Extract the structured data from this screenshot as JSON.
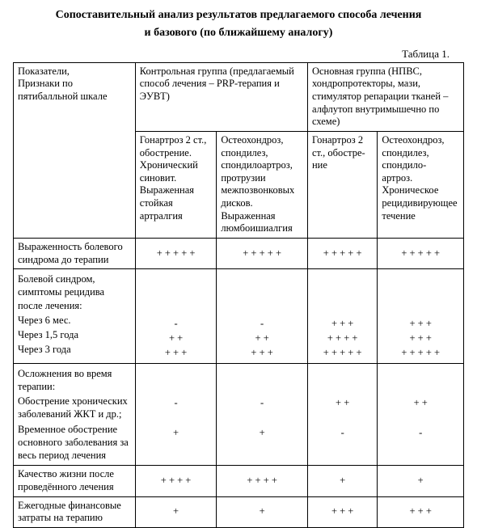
{
  "title_line1": "Сопоставительный анализ результатов предлагаемого способа лечения",
  "title_line2": "и базового (по ближайшему аналогу)",
  "table_label": "Таблица 1.",
  "head": {
    "r0c0": "Показатели,\nПризнаки по\nпятибалльной шкале",
    "r0c1": "Контрольная группа (предлагаемый способ лечения – PRP-терапия и ЭУВТ)",
    "r0c2": "Основная группа (НПВС, хондропротекторы, мази, стимулятор репарации тканей – алфлутоп внутримышечно по схеме)",
    "r1c1": "Гонартроз 2 ст., обострение. Хронический синовит. Выраженная стойкая артралгия",
    "r1c2": "Остеохондроз, спондилез, спондилоартроз, протрузии межпозвонковых дисков. Выраженная люмбоишиалгия",
    "r1c3": "Гонартроз 2 ст., обостре-\nние",
    "r1c4": "Остеохондроз, спондилез, спондило-\nартроз. Хроническое рецидивирующее течение"
  },
  "rows": {
    "r1_label": "Выраженность болевого синдрома до терапии",
    "r1": [
      "+ + + + +",
      "+ + + + +",
      "+ + + + +",
      "+ + + + +"
    ],
    "r2_label_l1": "Болевой синдром, симптомы рецидива после лечения:",
    "r2_label_l2": "Через  6 мес.",
    "r2_label_l3": "Через 1,5 года",
    "r2_label_l4": "Через 3 года",
    "r2c1": [
      "-",
      "+ +",
      "+ + +"
    ],
    "r2c2": [
      "-",
      "+ +",
      "+ + +"
    ],
    "r2c3": [
      "+ + +",
      "+ + + +",
      "+ + + + +"
    ],
    "r2c4": [
      "+ + +",
      "+ + +",
      "+ + + + +"
    ],
    "r3_label_l1": "Осложнения во время терапии:",
    "r3_label_l2": "Обострение хронических заболеваний ЖКТ и др.;",
    "r3_label_l3": "Временное обострение основного заболевания за весь период лечения",
    "r3c1": [
      "-",
      "+"
    ],
    "r3c2": [
      "-",
      "+"
    ],
    "r3c3": [
      "+ +",
      "-"
    ],
    "r3c4": [
      "+ +",
      "-"
    ],
    "r4_label": "Качество жизни после проведённого лечения",
    "r4": [
      "+ + + +",
      "+ + + +",
      "+",
      "+"
    ],
    "r5_label": "Ежегодные финансовые затраты на терапию",
    "r5": [
      "+",
      "+",
      "+ + +",
      "+ + +"
    ]
  },
  "style": {
    "font_family": "Times New Roman",
    "text_color": "#000000",
    "background": "#ffffff",
    "border_color": "#000000",
    "title_fontsize_pt": 11,
    "body_fontsize_pt": 10
  }
}
